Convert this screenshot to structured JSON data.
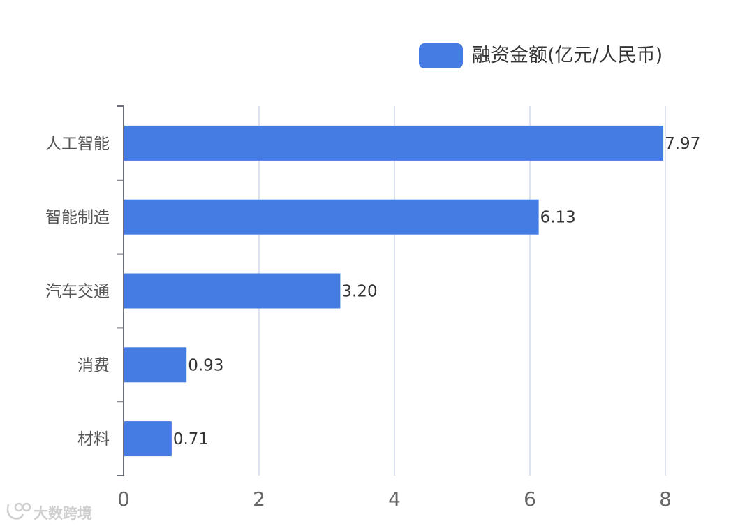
{
  "chart_data": {
    "type": "bar",
    "orientation": "horizontal",
    "categories": [
      "人工智能",
      "智能制造",
      "汽车交通",
      "消费",
      "材料"
    ],
    "series": [
      {
        "name": "融资金额(亿元/人民币)",
        "values": [
          7.97,
          6.13,
          3.2,
          0.93,
          0.71
        ],
        "value_labels": [
          "7.97",
          "6.13",
          "3.20",
          "0.93",
          "0.71"
        ],
        "color": "#457ce3"
      }
    ],
    "xticks": [
      "0",
      "2",
      "4",
      "6",
      "8"
    ],
    "xlim": [
      0,
      8
    ],
    "grid": true,
    "legend": "top-right"
  },
  "watermark": {
    "text": "大数跨境"
  }
}
